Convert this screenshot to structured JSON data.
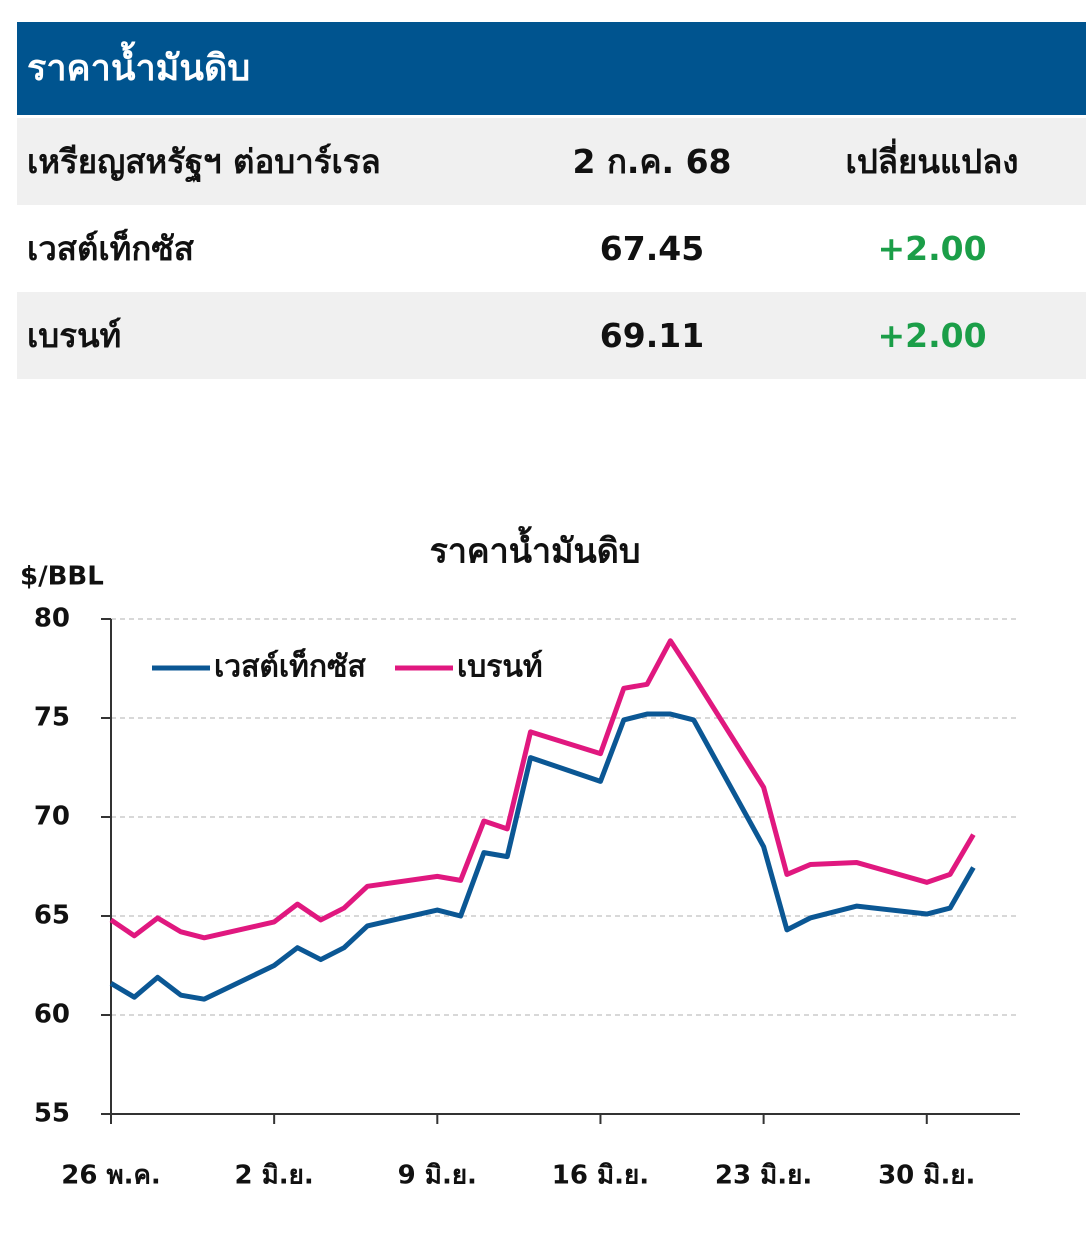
{
  "table": {
    "title": "ราคาน้ำมันดิบ",
    "header": [
      "เหรียญสหรัฐฯ ต่อบาร์เรล",
      "2 ก.ค. 68",
      "เปลี่ยนแปลง"
    ],
    "rows": [
      [
        "เวสต์เท็กซัส",
        "67.45",
        "+2.00"
      ],
      [
        "เบรนท์",
        "69.11",
        "+2.00"
      ]
    ]
  },
  "chart_data": {
    "type": "line",
    "title": "ราคาน้ำมันดิบ",
    "y_label": "$/BBL",
    "x": [
      0,
      1,
      2,
      3,
      4,
      7,
      8,
      9,
      10,
      11,
      14,
      15,
      16,
      17,
      18,
      21,
      22,
      23,
      24,
      25,
      28,
      29,
      30,
      32,
      35,
      36,
      37
    ],
    "xlim": [
      0,
      39
    ],
    "xticks": [
      {
        "value": 0,
        "label": "26 พ.ค."
      },
      {
        "value": 7,
        "label": "2 มิ.ย."
      },
      {
        "value": 14,
        "label": "9 มิ.ย."
      },
      {
        "value": 21,
        "label": "16 มิ.ย."
      },
      {
        "value": 28,
        "label": "23 มิ.ย."
      },
      {
        "value": 35,
        "label": "30 มิ.ย."
      }
    ],
    "ylim": [
      55,
      80
    ],
    "yticks": [
      55,
      60,
      65,
      70,
      75,
      80
    ],
    "grid": true,
    "series": [
      {
        "name": "เวสต์เท็กซัส",
        "color": "#0b5794",
        "values": [
          61.6,
          60.9,
          61.9,
          61.0,
          60.8,
          62.5,
          63.4,
          62.8,
          63.4,
          64.5,
          65.3,
          65.0,
          68.2,
          68.0,
          73.0,
          71.8,
          74.9,
          75.2,
          75.2,
          74.9,
          68.5,
          64.3,
          64.9,
          65.5,
          65.1,
          65.4,
          67.45
        ]
      },
      {
        "name": "เบรนท์",
        "color": "#e0187f",
        "values": [
          64.8,
          64.0,
          64.9,
          64.2,
          63.9,
          64.7,
          65.6,
          64.8,
          65.4,
          66.5,
          67.0,
          66.8,
          69.8,
          69.4,
          74.3,
          73.2,
          76.5,
          76.7,
          78.9,
          77.1,
          71.5,
          67.1,
          67.6,
          67.7,
          66.7,
          67.1,
          69.11
        ]
      }
    ]
  }
}
